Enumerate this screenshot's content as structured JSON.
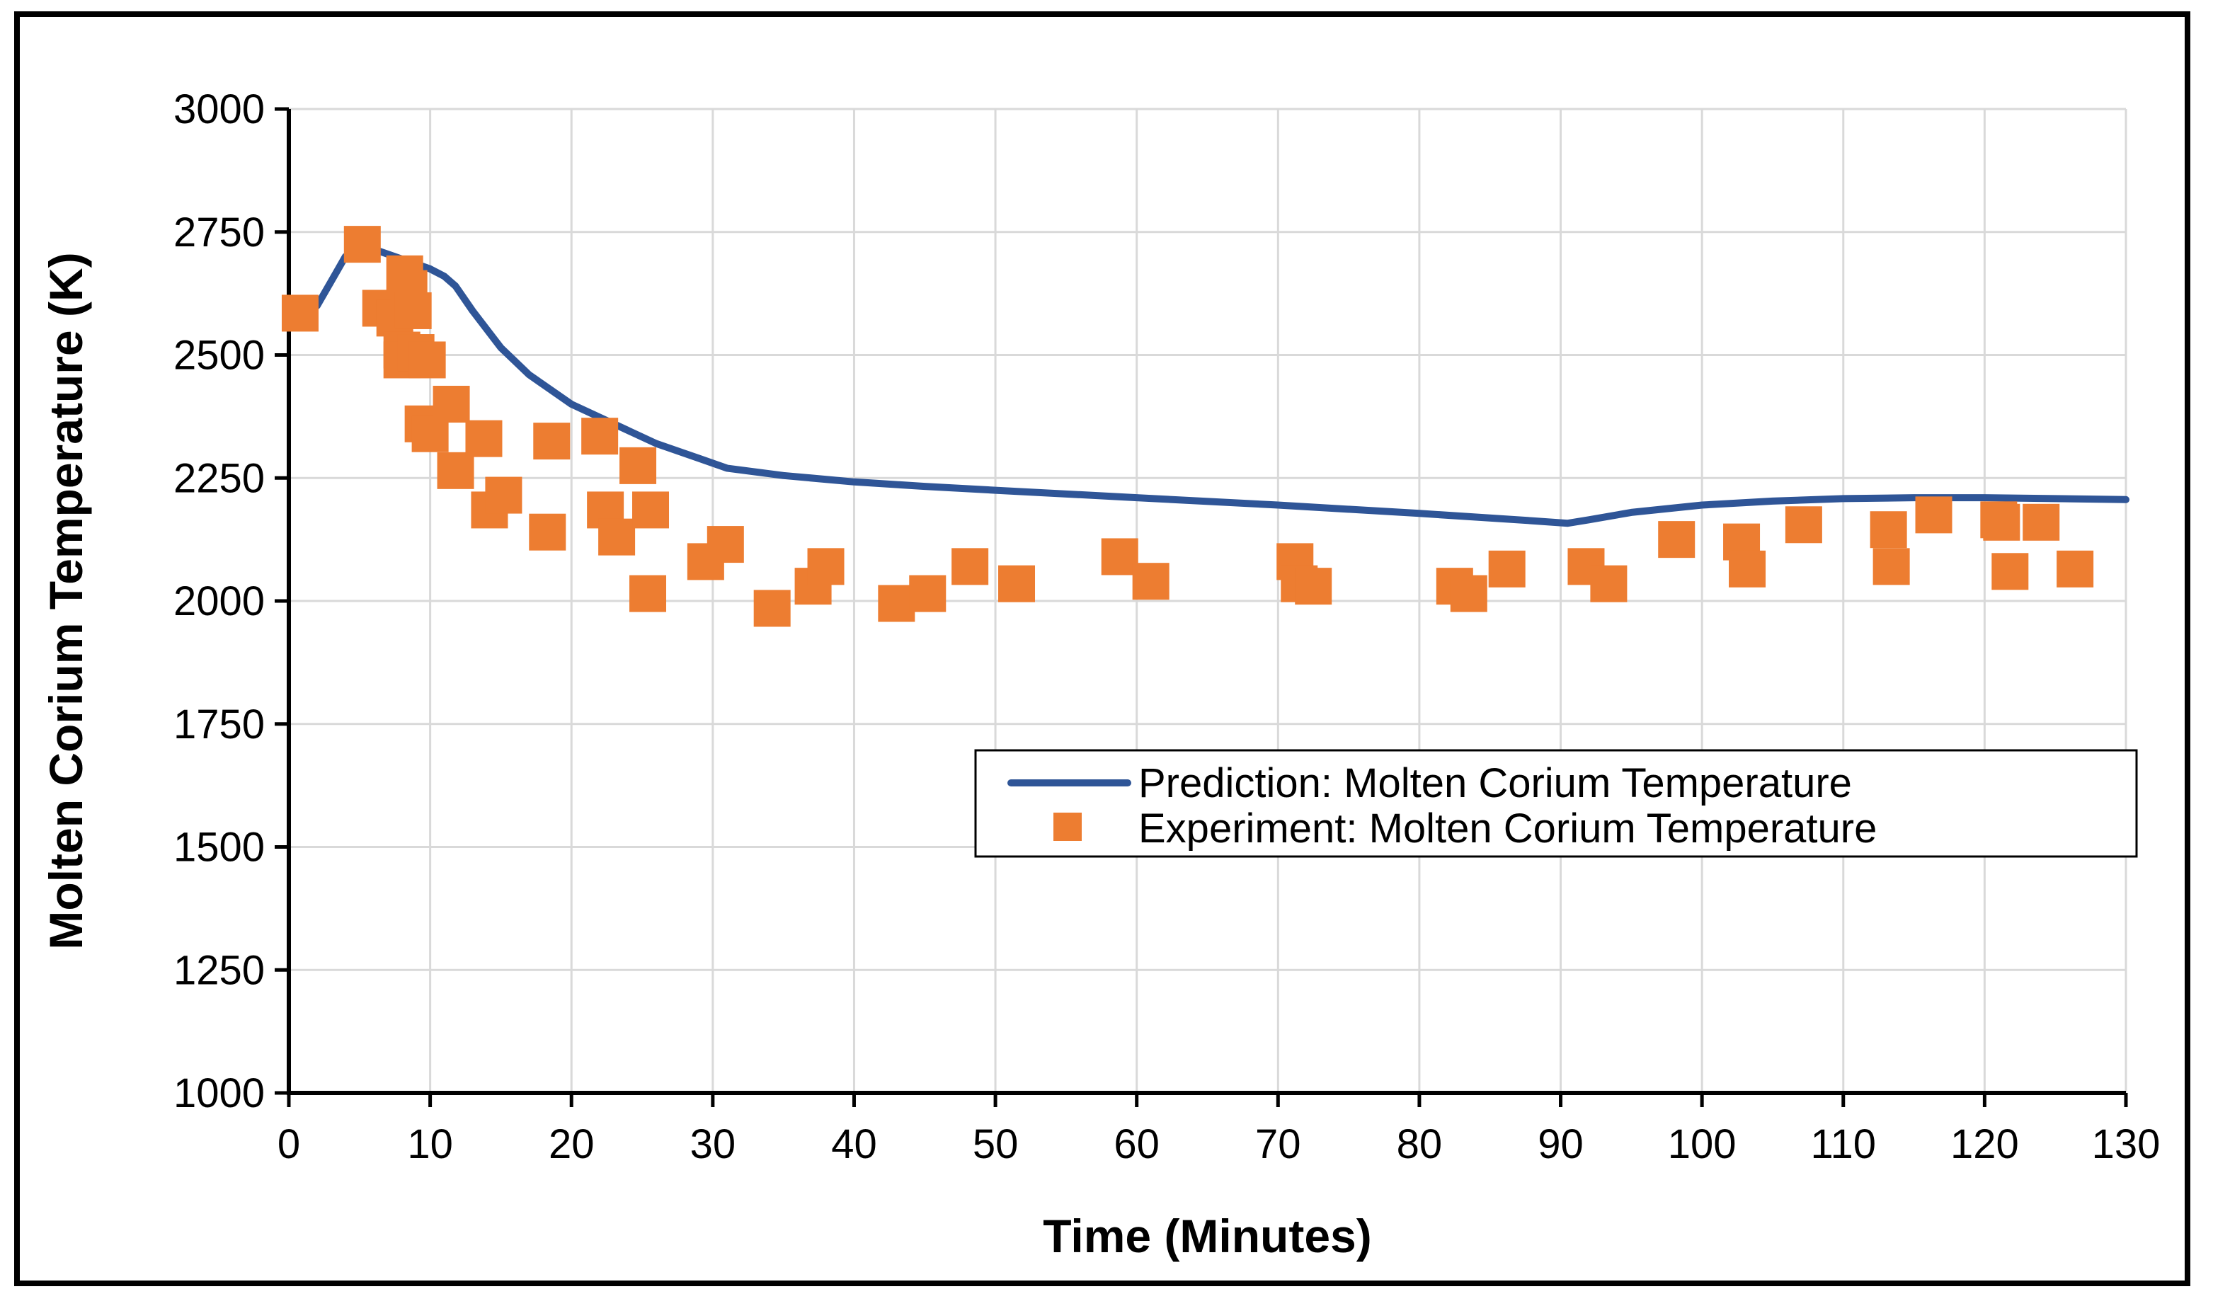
{
  "chart_data": {
    "type": "scatter",
    "title": "",
    "xlabel": "Time (Minutes)",
    "ylabel": "Molten Corium Temperature (K)",
    "xlim": [
      0,
      130
    ],
    "ylim": [
      1000,
      3000
    ],
    "xticks": [
      0,
      10,
      20,
      30,
      40,
      50,
      60,
      70,
      80,
      90,
      100,
      110,
      120,
      130
    ],
    "yticks": [
      1000,
      1250,
      1500,
      1750,
      2000,
      2250,
      2500,
      2750,
      3000
    ],
    "grid": true,
    "legend_position": "center-right",
    "colors": {
      "prediction": "#2F5597",
      "experiment": "#ED7D31"
    },
    "series": [
      {
        "name": "Prediction: Molten Corium Temperature",
        "kind": "line",
        "x": [
          2,
          3,
          4,
          5,
          6,
          7,
          8,
          9,
          10,
          11,
          11.8,
          13,
          15,
          17,
          20,
          23,
          26,
          29,
          31,
          35,
          40,
          45,
          50,
          60,
          70,
          80,
          88,
          90.5,
          92,
          95,
          100,
          105,
          110,
          115,
          120,
          125,
          130
        ],
        "y": [
          2600,
          2650,
          2700,
          2720,
          2715,
          2705,
          2695,
          2685,
          2675,
          2660,
          2640,
          2590,
          2515,
          2460,
          2400,
          2360,
          2320,
          2290,
          2270,
          2255,
          2242,
          2233,
          2225,
          2210,
          2195,
          2178,
          2163,
          2158,
          2165,
          2180,
          2195,
          2203,
          2208,
          2210,
          2210,
          2208,
          2206
        ]
      },
      {
        "name": "Experiment: Molten Corium Temperature",
        "kind": "scatter",
        "x": [
          0.8,
          5.2,
          6.5,
          7.5,
          8.0,
          8.2,
          8.5,
          8.8,
          8.0,
          9.0,
          9.8,
          9.5,
          10.0,
          11.5,
          11.8,
          13.8,
          14.2,
          15.2,
          18.3,
          18.6,
          22.0,
          22.4,
          23.2,
          24.7,
          25.6,
          25.4,
          29.5,
          30.9,
          34.2,
          37.1,
          38.0,
          43.0,
          45.2,
          48.2,
          51.5,
          58.8,
          61.0,
          71.2,
          71.5,
          72.5,
          82.5,
          83.5,
          86.2,
          91.8,
          93.4,
          98.2,
          102.8,
          103.2,
          107.2,
          113.2,
          113.4,
          116.4,
          121.0,
          121.2,
          121.8,
          124.0,
          126.4
        ],
        "y": [
          2585,
          2725,
          2595,
          2575,
          2510,
          2665,
          2635,
          2590,
          2490,
          2505,
          2490,
          2360,
          2340,
          2400,
          2265,
          2330,
          2185,
          2215,
          2140,
          2325,
          2335,
          2185,
          2130,
          2275,
          2185,
          2015,
          2080,
          2115,
          1985,
          2030,
          2070,
          1995,
          2015,
          2070,
          2035,
          2090,
          2040,
          2080,
          2035,
          2030,
          2030,
          2015,
          2065,
          2070,
          2035,
          2125,
          2120,
          2065,
          2155,
          2145,
          2070,
          2175,
          2165,
          2160,
          2060,
          2160,
          2065
        ]
      }
    ]
  }
}
